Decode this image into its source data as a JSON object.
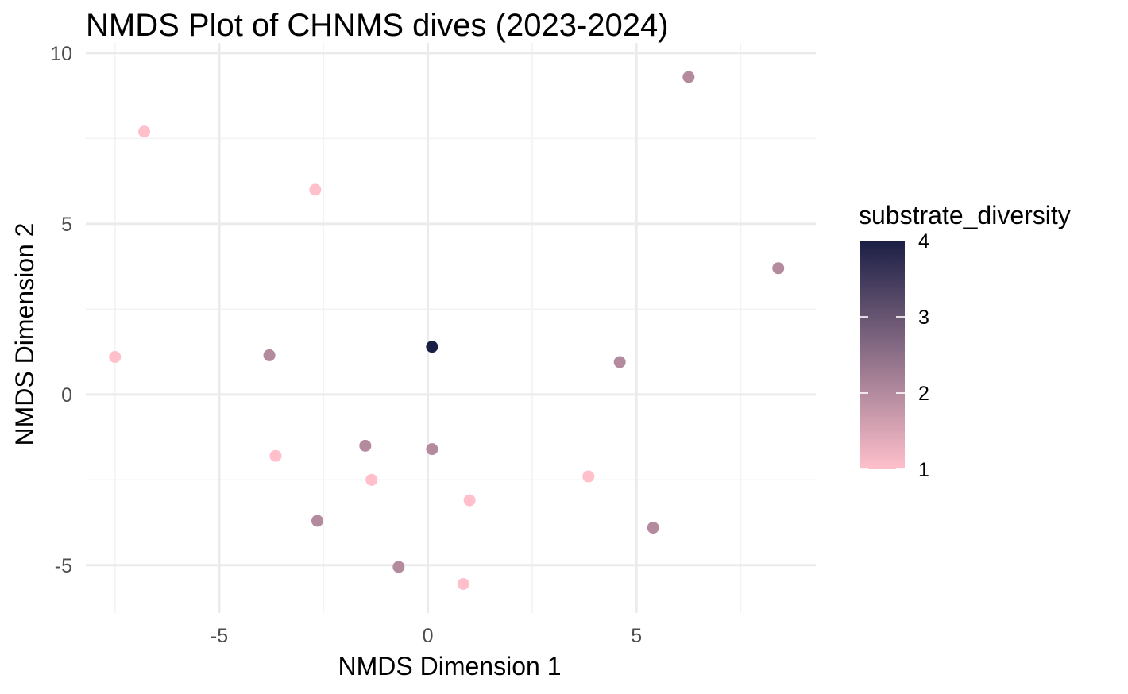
{
  "chart_data": {
    "type": "scatter",
    "title": "NMDS Plot of CHNMS dives (2023-2024)",
    "xlabel": "NMDS Dimension 1",
    "ylabel": "NMDS Dimension 2",
    "xlim": [
      -8.2,
      9.3
    ],
    "ylim": [
      -6.4,
      10.3
    ],
    "x_ticks": [
      -5,
      0,
      5
    ],
    "y_ticks": [
      -5,
      0,
      5,
      10
    ],
    "x_tick_labels": [
      "-5",
      "0",
      "5"
    ],
    "y_tick_labels": [
      "-5",
      "0",
      "5",
      "10"
    ],
    "grid": true,
    "legend": {
      "title": "substrate_diversity",
      "placement": "right",
      "type": "continuous-colorbar",
      "min": 1,
      "max": 4,
      "ticks": [
        1,
        2,
        3,
        4
      ],
      "tick_labels": [
        "1",
        "2",
        "3",
        "4"
      ],
      "low_color": "#ffc0cb",
      "high_color": "#1b1f45"
    },
    "points": [
      {
        "x": -6.8,
        "y": 7.7,
        "substrate_diversity": 1
      },
      {
        "x": -2.7,
        "y": 6.0,
        "substrate_diversity": 1
      },
      {
        "x": 6.25,
        "y": 9.3,
        "substrate_diversity": 2
      },
      {
        "x": 8.4,
        "y": 3.7,
        "substrate_diversity": 2
      },
      {
        "x": -7.5,
        "y": 1.1,
        "substrate_diversity": 1
      },
      {
        "x": -3.8,
        "y": 1.15,
        "substrate_diversity": 2
      },
      {
        "x": 0.1,
        "y": 1.4,
        "substrate_diversity": 4
      },
      {
        "x": 4.6,
        "y": 0.95,
        "substrate_diversity": 2
      },
      {
        "x": -3.65,
        "y": -1.8,
        "substrate_diversity": 1
      },
      {
        "x": -1.5,
        "y": -1.5,
        "substrate_diversity": 2
      },
      {
        "x": 0.1,
        "y": -1.6,
        "substrate_diversity": 2
      },
      {
        "x": -1.35,
        "y": -2.5,
        "substrate_diversity": 1
      },
      {
        "x": 1.0,
        "y": -3.1,
        "substrate_diversity": 1
      },
      {
        "x": 3.85,
        "y": -2.4,
        "substrate_diversity": 1
      },
      {
        "x": -2.65,
        "y": -3.7,
        "substrate_diversity": 2
      },
      {
        "x": 5.4,
        "y": -3.9,
        "substrate_diversity": 2
      },
      {
        "x": -0.7,
        "y": -5.05,
        "substrate_diversity": 2
      },
      {
        "x": 0.85,
        "y": -5.55,
        "substrate_diversity": 1
      }
    ]
  }
}
